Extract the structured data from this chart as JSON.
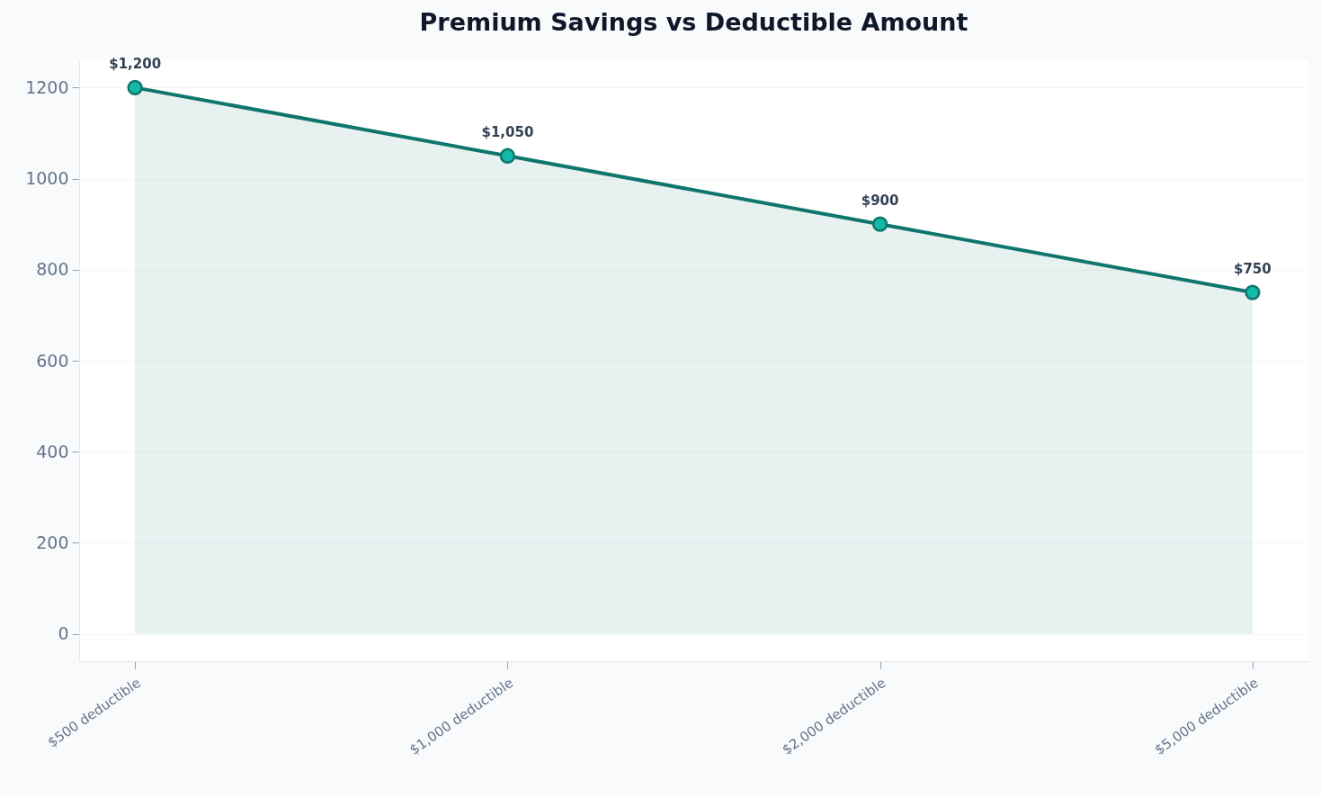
{
  "chart_data": {
    "type": "area",
    "title": "Premium Savings vs Deductible Amount",
    "categories": [
      "$500 deductible",
      "$1,000 deductible",
      "$2,000 deductible",
      "$5,000 deductible"
    ],
    "series": [
      {
        "color": "#0f766e",
        "values": [
          1200,
          1050,
          900,
          750
        ],
        "value_labels": [
          "$1,200",
          "$1,050",
          "$900",
          "$750"
        ]
      }
    ],
    "ylim": [
      -60,
      1260
    ],
    "yticks": [
      0,
      200,
      400,
      600,
      800,
      1000,
      1200
    ],
    "grid": "y",
    "marker": "circle",
    "line_style": "solid"
  }
}
